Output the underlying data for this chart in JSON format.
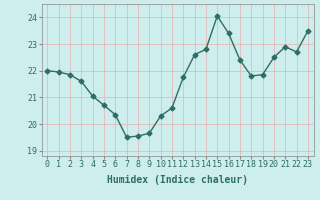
{
  "x": [
    0,
    1,
    2,
    3,
    4,
    5,
    6,
    7,
    8,
    9,
    10,
    11,
    12,
    13,
    14,
    15,
    16,
    17,
    18,
    19,
    20,
    21,
    22,
    23
  ],
  "y": [
    22.0,
    21.95,
    21.85,
    21.6,
    21.05,
    20.7,
    20.35,
    19.5,
    19.55,
    19.65,
    20.3,
    20.6,
    21.75,
    22.6,
    22.8,
    24.05,
    23.4,
    22.4,
    21.8,
    21.85,
    22.5,
    22.9,
    22.7,
    23.5
  ],
  "line_color": "#2d6e65",
  "marker": "D",
  "marker_size": 2.5,
  "bg_color": "#cdeeed",
  "grid_color": "#e8b0b0",
  "xlabel": "Humidex (Indice chaleur)",
  "xlim": [
    -0.5,
    23.5
  ],
  "ylim": [
    18.8,
    24.5
  ],
  "yticks": [
    19,
    20,
    21,
    22,
    23,
    24
  ],
  "xticks": [
    0,
    1,
    2,
    3,
    4,
    5,
    6,
    7,
    8,
    9,
    10,
    11,
    12,
    13,
    14,
    15,
    16,
    17,
    18,
    19,
    20,
    21,
    22,
    23
  ],
  "xlabel_fontsize": 7,
  "tick_fontsize": 6,
  "line_width": 1.0,
  "spine_color": "#888888"
}
